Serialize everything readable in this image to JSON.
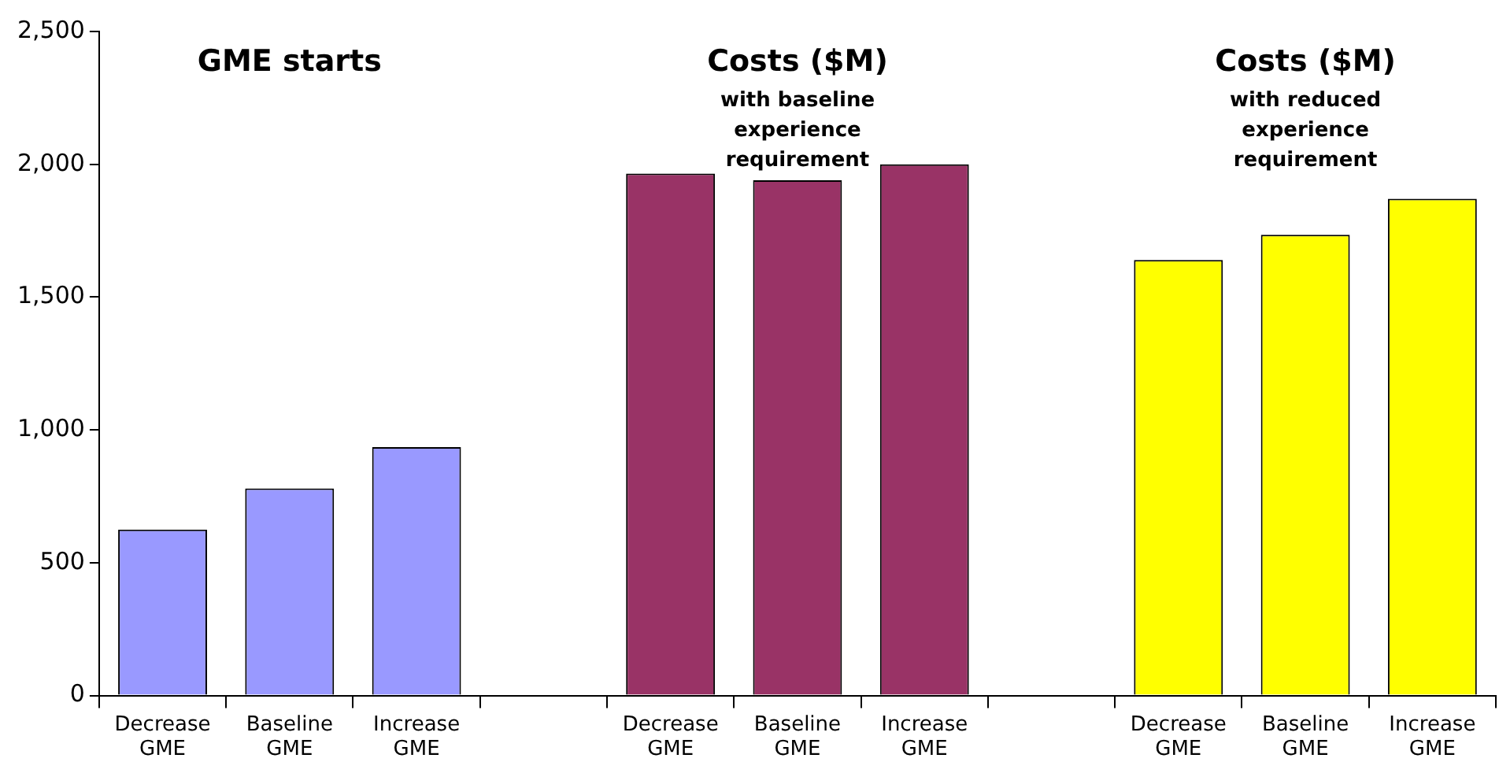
{
  "chart_data": {
    "type": "bar",
    "categories": [
      "Decrease GME",
      "Baseline GME",
      "Increase GME",
      null,
      "Decrease GME",
      "Baseline GME",
      "Increase GME",
      null,
      "Decrease GME",
      "Baseline GME",
      "Increase GME"
    ],
    "values": [
      625,
      780,
      935,
      null,
      1965,
      1940,
      2000,
      null,
      1640,
      1735,
      1870
    ],
    "colors": [
      "#9999ff",
      "#9999ff",
      "#9999ff",
      "#9999ff",
      "#993366",
      "#993366",
      "#993366",
      "#993366",
      "#ffff00",
      "#ffff00",
      "#ffff00"
    ],
    "ylim": [
      0,
      2500
    ],
    "yticks": [
      0,
      500,
      {
        "value": 1000,
        "label": "1,000"
      },
      {
        "value": 1500,
        "label": "1,500"
      },
      {
        "value": 2000,
        "label": "2,000"
      },
      {
        "value": 2500,
        "label": "2,500"
      }
    ],
    "grid": false,
    "legend": false,
    "annotations": [
      "GME starts",
      "Costs ($M)",
      "with baseline experience requirement",
      "Costs ($M)",
      "with reduced experience requirement"
    ]
  }
}
